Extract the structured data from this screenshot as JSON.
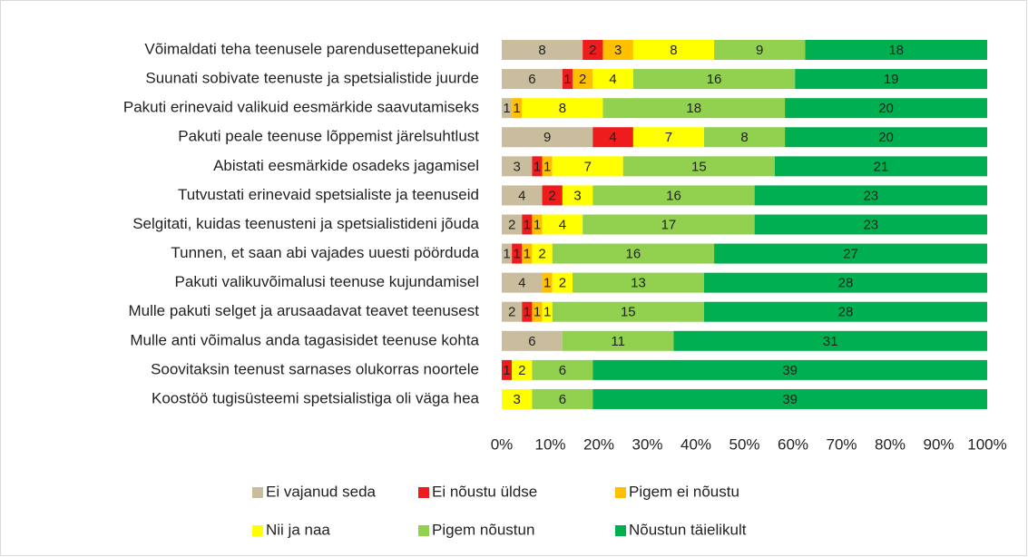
{
  "chart_data": {
    "type": "bar",
    "orientation": "horizontal",
    "stacking": "percent",
    "categories": [
      "Võimaldati teha teenusele parendusettepanekuid",
      "Suunati sobivate teenuste ja spetsialistide juurde",
      "Pakuti erinevaid valikuid eesmärkide saavutamiseks",
      "Pakuti peale teenuse lõppemist järelsuhtlust",
      "Abistati eesmärkide osadeks jagamisel",
      "Tutvustati erinevaid spetsialiste ja teenuseid",
      "Selgitati, kuidas teenusteni ja spetsialistideni jõuda",
      "Tunnen, et saan abi vajades  uuesti pöörduda",
      "Pakuti valikuvõimalusi teenuse kujundamisel",
      "Mulle pakuti selget ja arusaadavat teavet teenusest",
      "Mulle anti võimalus anda tagasisidet teenuse kohta",
      "Soovitaksin teenust sarnases olukorras noortele",
      "Koostöö tugisüsteemi spetsialistiga oli väga hea"
    ],
    "series": [
      {
        "name": "Ei vajanud seda",
        "color": "#c9bd9e",
        "values": [
          8,
          6,
          1,
          9,
          3,
          4,
          2,
          1,
          4,
          2,
          6,
          null,
          null
        ]
      },
      {
        "name": "Ei nõustu üldse",
        "color": "#ee1c1c",
        "values": [
          2,
          1,
          null,
          4,
          1,
          2,
          1,
          1,
          null,
          1,
          null,
          1,
          null
        ]
      },
      {
        "name": "Pigem ei nõustu",
        "color": "#ffc000",
        "values": [
          3,
          2,
          1,
          null,
          1,
          null,
          1,
          1,
          1,
          1,
          null,
          null,
          null
        ]
      },
      {
        "name": "Nii ja naa",
        "color": "#ffff00",
        "values": [
          8,
          4,
          8,
          7,
          7,
          3,
          4,
          2,
          2,
          1,
          null,
          2,
          3
        ]
      },
      {
        "name": "Pigem nõustun",
        "color": "#92d050",
        "values": [
          9,
          16,
          18,
          8,
          15,
          16,
          17,
          16,
          13,
          15,
          11,
          6,
          6
        ]
      },
      {
        "name": "Nõustun täielikult",
        "color": "#00b050",
        "values": [
          18,
          19,
          20,
          20,
          21,
          23,
          23,
          27,
          28,
          28,
          31,
          39,
          39
        ]
      }
    ],
    "xlim": [
      0,
      100
    ],
    "xticks": [
      {
        "value": 0,
        "label": "0%"
      },
      {
        "value": 10,
        "label": "10%"
      },
      {
        "value": 20,
        "label": "20%"
      },
      {
        "value": 30,
        "label": "30%"
      },
      {
        "value": 40,
        "label": "40%"
      },
      {
        "value": 50,
        "label": "50%"
      },
      {
        "value": 60,
        "label": "60%"
      },
      {
        "value": 70,
        "label": "70%"
      },
      {
        "value": 80,
        "label": "80%"
      },
      {
        "value": 90,
        "label": "90%"
      },
      {
        "value": 100,
        "label": "100%"
      }
    ],
    "legend": "bottom"
  }
}
